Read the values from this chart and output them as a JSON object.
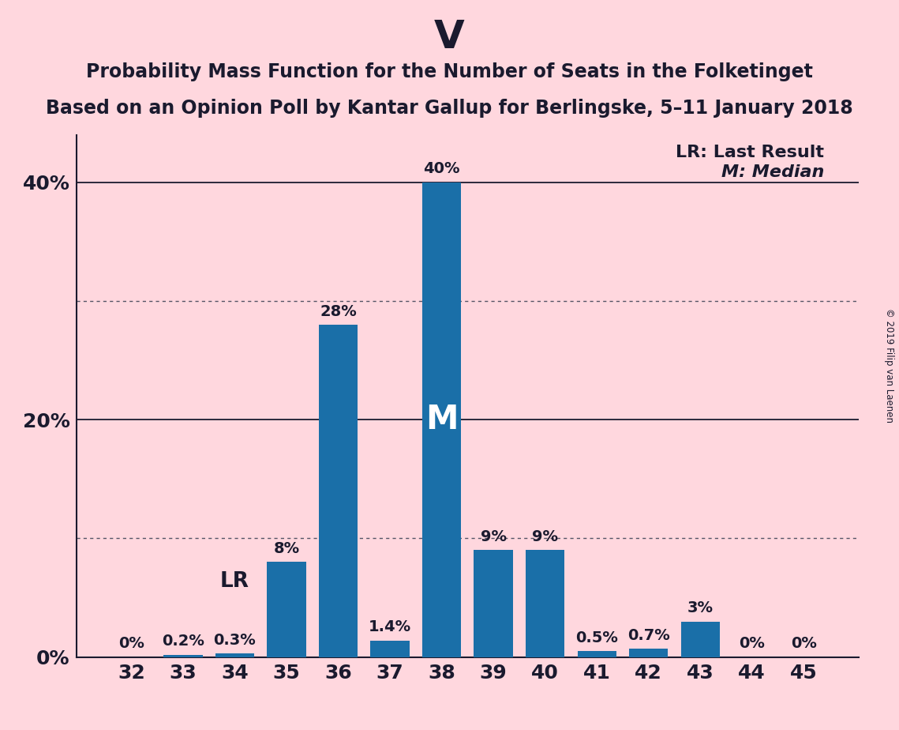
{
  "title": "V",
  "subtitle1": "Probability Mass Function for the Number of Seats in the Folketinget",
  "subtitle2": "Based on an Opinion Poll by Kantar Gallup for Berlingske, 5–11 January 2018",
  "copyright": "© 2019 Filip van Laenen",
  "categories": [
    32,
    33,
    34,
    35,
    36,
    37,
    38,
    39,
    40,
    41,
    42,
    43,
    44,
    45
  ],
  "values": [
    0.0,
    0.2,
    0.3,
    8.0,
    28.0,
    1.4,
    40.0,
    9.0,
    9.0,
    0.5,
    0.7,
    3.0,
    0.0,
    0.0
  ],
  "bar_labels": [
    "0%",
    "0.2%",
    "0.3%",
    "8%",
    "28%",
    "1.4%",
    "40%",
    "9%",
    "9%",
    "0.5%",
    "0.7%",
    "3%",
    "0%",
    "0%"
  ],
  "bar_color": "#1a6fa8",
  "background_color": "#ffd7de",
  "yticks": [
    0,
    20,
    40
  ],
  "ylim": [
    0,
    44
  ],
  "median_bar_idx": 6,
  "lr_bar_idx": 2,
  "legend_lr": "LR: Last Result",
  "legend_m": "M: Median",
  "title_fontsize": 36,
  "subtitle_fontsize": 17,
  "bar_label_fontsize": 14,
  "axis_label_fontsize": 18,
  "legend_fontsize": 16
}
